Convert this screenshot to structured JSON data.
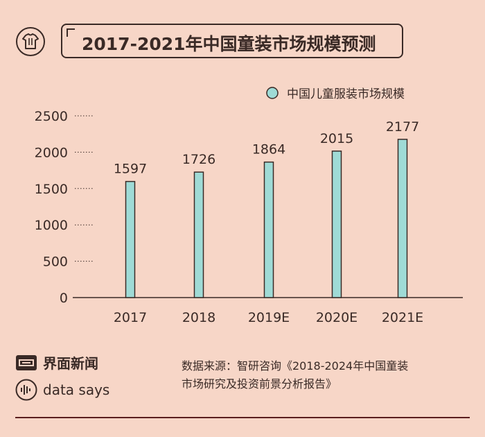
{
  "header": {
    "title": "2017-2021年中国童装市场规模预测"
  },
  "colors": {
    "background": "#f7d6c7",
    "bar": "#9fdbd6",
    "bar_stroke": "#3a2a26",
    "text": "#3a2a26",
    "rule": "#5a1e1e"
  },
  "chart_data": {
    "type": "bar",
    "title": "2017-2021年中国童装市场规模预测",
    "categories": [
      "2017",
      "2018",
      "2019E",
      "2020E",
      "2021E"
    ],
    "series": [
      {
        "name": "中国儿童服装市场规模",
        "values": [
          1597,
          1726,
          1864,
          2015,
          2177
        ]
      }
    ],
    "data_labels": [
      "1597",
      "1726",
      "1864",
      "2015",
      "2177"
    ],
    "yticks": [
      0,
      500,
      1000,
      1500,
      2000,
      2500
    ],
    "ylim": [
      0,
      2500
    ],
    "xlabel": "",
    "ylabel": "",
    "legend_position": "top-right",
    "grid": false
  },
  "footer": {
    "logo_text": "界面新闻",
    "says_text": "data says",
    "source_line1": "数据来源：智研咨询《2018-2024年中国童装",
    "source_line2": "市场研究及投资前景分析报告》"
  },
  "icons": {
    "header_icon": "tshirt-icon",
    "logo_icon": "jiemian-logo-icon",
    "says_icon": "waveform-icon"
  }
}
